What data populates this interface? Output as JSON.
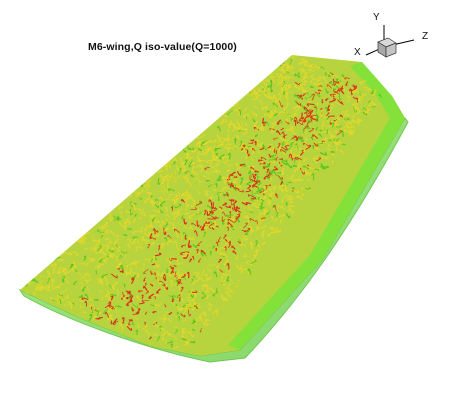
{
  "figure": {
    "title": "M6-wing,Q iso-value(Q=1000)",
    "axes": {
      "y": "Y",
      "x": "X",
      "z": "Z"
    },
    "colors": {
      "background": "#ffffff",
      "wing_fill": "#9adf7c",
      "wing_edge": "#6fc84a",
      "leading_edge_band": "#7ee23a",
      "q_low": "#5cc51f",
      "q_mid": "#e3d72a",
      "q_high": "#d8321c"
    }
  }
}
